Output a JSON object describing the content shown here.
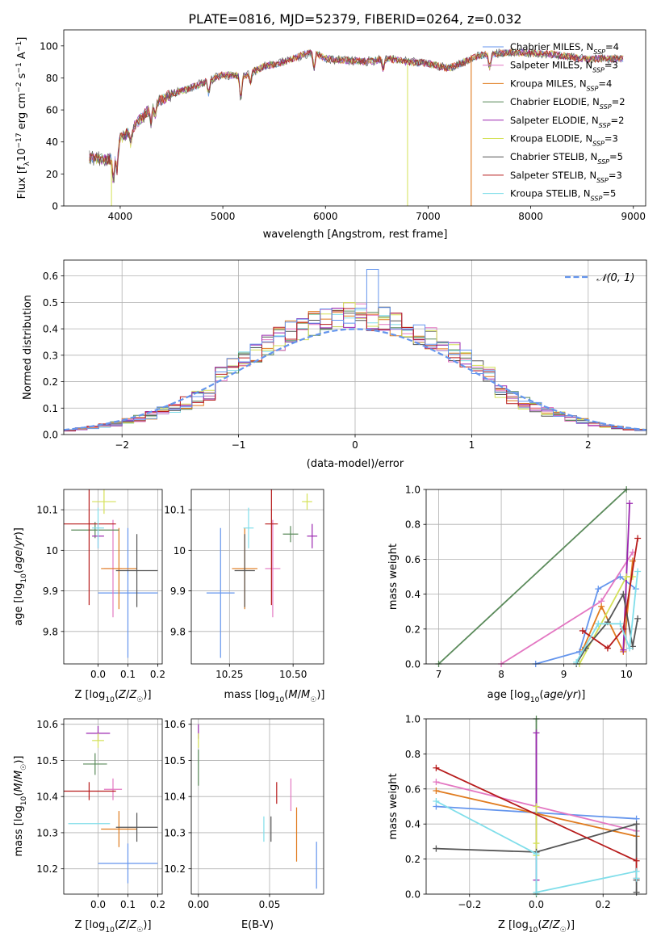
{
  "colors": [
    "#6495ed",
    "#e377c2",
    "#e07b1e",
    "#5a8a5a",
    "#9b27b0",
    "#d4e157",
    "#555555",
    "#b71c1c",
    "#80deea"
  ],
  "chart_data": [
    {
      "id": "spectrum",
      "type": "line",
      "title": "PLATE=0816, MJD=52379, FIBERID=0264, z=0.032",
      "xlabel": "wavelength [Angstrom, rest frame]",
      "ylabel": "Flux [fλ10⁻¹⁷ erg cm⁻² s⁻¹ A⁻¹]",
      "xlim": [
        3450,
        9120
      ],
      "ylim": [
        0,
        110
      ],
      "xticks": [
        4000,
        5000,
        6000,
        7000,
        8000,
        9000
      ],
      "yticks": [
        0,
        20,
        40,
        60,
        80,
        100
      ],
      "x_range": [
        3700,
        8900
      ],
      "continuum": [
        [
          3700,
          30
        ],
        [
          3900,
          29
        ],
        [
          4000,
          42
        ],
        [
          4100,
          47
        ],
        [
          4300,
          62
        ],
        [
          4500,
          70
        ],
        [
          4700,
          74
        ],
        [
          4850,
          78
        ],
        [
          5000,
          82
        ],
        [
          5200,
          81
        ],
        [
          5400,
          87
        ],
        [
          5600,
          90
        ],
        [
          5800,
          95
        ],
        [
          5900,
          96
        ],
        [
          6000,
          92
        ],
        [
          6200,
          91
        ],
        [
          6400,
          90
        ],
        [
          6600,
          92
        ],
        [
          6800,
          90
        ],
        [
          7000,
          89
        ],
        [
          7200,
          86
        ],
        [
          7500,
          94
        ],
        [
          7800,
          96
        ],
        [
          8200,
          95
        ],
        [
          8500,
          92
        ],
        [
          8900,
          92
        ]
      ],
      "legend_loc": "upper right",
      "series": [
        {
          "name": "Chabrier MILES, N_SSP=4"
        },
        {
          "name": "Salpeter MILES, N_SSP=3"
        },
        {
          "name": "Kroupa MILES, N_SSP=4"
        },
        {
          "name": "Chabrier ELODIE, N_SSP=2"
        },
        {
          "name": "Salpeter ELODIE, N_SSP=2"
        },
        {
          "name": "Kroupa ELODIE, N_SSP=3"
        },
        {
          "name": "Chabrier STELIB, N_SSP=5"
        },
        {
          "name": "Salpeter STELIB, N_SSP=3"
        },
        {
          "name": "Kroupa STELIB, N_SSP=5"
        }
      ]
    },
    {
      "id": "residuals",
      "type": "histogram",
      "xlabel": "(data-model)/error",
      "ylabel": "Normed distribution",
      "xlim": [
        -2.5,
        2.5
      ],
      "ylim": [
        0,
        0.66
      ],
      "xticks": [
        -2,
        -1,
        0,
        1,
        2
      ],
      "yticks": [
        0.0,
        0.1,
        0.2,
        0.3,
        0.4,
        0.5,
        0.6
      ],
      "bin_width": 0.1,
      "bin_start": -2.5,
      "reference_label": "𝒩(0, 1)",
      "reference_color": "#6495ed",
      "legend_loc": "upper right",
      "grid": true
    },
    {
      "id": "age_vs_Z",
      "type": "errorbar",
      "xlabel": "Z [log10(Z/Z☉)]",
      "ylabel": "age  [log10(age/yr)]",
      "xlim": [
        -0.115,
        0.215
      ],
      "ylim": [
        9.72,
        10.15
      ],
      "xticks": [
        0.0,
        0.1,
        0.2
      ],
      "xticklabels": [
        "0.0",
        "0.1",
        "0.2"
      ],
      "yticks": [
        9.8,
        9.9,
        10.0,
        10.1
      ],
      "points": [
        {
          "x": 0.1,
          "xerr": 0.1,
          "y": 9.895,
          "yerr": 0.16,
          "c": 0
        },
        {
          "x": 0.05,
          "xerr": 0.03,
          "y": 9.955,
          "yerr": 0.12,
          "c": 1
        },
        {
          "x": 0.07,
          "xerr": 0.06,
          "y": 9.955,
          "yerr": 0.1,
          "c": 2
        },
        {
          "x": -0.01,
          "xerr": 0.08,
          "y": 10.05,
          "yerr": 0.02,
          "c": 3
        },
        {
          "x": 0.0,
          "xerr": 0.02,
          "y": 10.035,
          "yerr": 0.03,
          "c": 4
        },
        {
          "x": 0.02,
          "xerr": 0.04,
          "y": 10.12,
          "yerr": 0.03,
          "c": 5
        },
        {
          "x": 0.13,
          "xerr": 0.07,
          "y": 9.95,
          "yerr": 0.09,
          "c": 6
        },
        {
          "x": -0.03,
          "xerr": 0.09,
          "y": 10.065,
          "yerr": 0.2,
          "c": 7
        },
        {
          "x": 0.0,
          "xerr": 0.02,
          "y": 10.055,
          "yerr": 0.05,
          "c": 8
        }
      ]
    },
    {
      "id": "age_vs_mass",
      "type": "errorbar",
      "xlabel": "mass [log10(M/M☉)]",
      "ylabel": "",
      "xlim": [
        10.1,
        10.62
      ],
      "ylim": [
        9.72,
        10.15
      ],
      "xticks": [
        10.25,
        10.5
      ],
      "xticklabels": [
        "10.25",
        "10.50"
      ],
      "yticks": [
        9.8,
        9.9,
        10.0,
        10.1
      ],
      "points": [
        {
          "x": 10.215,
          "xerr": 0.055,
          "y": 9.895,
          "yerr": 0.16,
          "c": 0
        },
        {
          "x": 10.42,
          "xerr": 0.03,
          "y": 9.955,
          "yerr": 0.12,
          "c": 1
        },
        {
          "x": 10.31,
          "xerr": 0.05,
          "y": 9.955,
          "yerr": 0.1,
          "c": 2
        },
        {
          "x": 10.49,
          "xerr": 0.03,
          "y": 10.04,
          "yerr": 0.02,
          "c": 3
        },
        {
          "x": 10.575,
          "xerr": 0.02,
          "y": 10.035,
          "yerr": 0.03,
          "c": 4
        },
        {
          "x": 10.555,
          "xerr": 0.02,
          "y": 10.12,
          "yerr": 0.02,
          "c": 5
        },
        {
          "x": 10.31,
          "xerr": 0.04,
          "y": 9.95,
          "yerr": 0.09,
          "c": 6
        },
        {
          "x": 10.415,
          "xerr": 0.025,
          "y": 10.065,
          "yerr": 0.2,
          "c": 7
        },
        {
          "x": 10.325,
          "xerr": 0.02,
          "y": 10.055,
          "yerr": 0.05,
          "c": 8
        }
      ]
    },
    {
      "id": "weight_vs_age",
      "type": "line",
      "xlabel": "age  [log10(age/yr)]",
      "ylabel": "mass weight",
      "xlim": [
        6.8,
        10.32
      ],
      "ylim": [
        0,
        1.0
      ],
      "xticks": [
        7,
        8,
        9,
        10
      ],
      "yticks": [
        0.0,
        0.2,
        0.4,
        0.6,
        0.8,
        1.0
      ],
      "yticklabels": [
        "0.0",
        "0.2",
        "0.4",
        "0.6",
        "0.8",
        "1.0"
      ],
      "series": [
        {
          "c": 0,
          "x": [
            8.55,
            9.25,
            9.55,
            9.9,
            10.15
          ],
          "y": [
            0.0,
            0.07,
            0.43,
            0.5,
            0.43
          ]
        },
        {
          "c": 1,
          "x": [
            8.0,
            9.6,
            10.1
          ],
          "y": [
            0.0,
            0.36,
            0.64
          ]
        },
        {
          "c": 2,
          "x": [
            9.3,
            9.6,
            9.95,
            10.1
          ],
          "y": [
            0.08,
            0.33,
            0.07,
            0.59
          ]
        },
        {
          "c": 3,
          "x": [
            7.0,
            10.0
          ],
          "y": [
            0.0,
            1.0
          ]
        },
        {
          "c": 4,
          "x": [
            9.95,
            10.05
          ],
          "y": [
            0.08,
            0.92
          ]
        },
        {
          "c": 5,
          "x": [
            9.25,
            10.0,
            10.1
          ],
          "y": [
            0.0,
            0.5,
            0.5
          ]
        },
        {
          "c": 6,
          "x": [
            9.2,
            9.35,
            9.7,
            9.95,
            10.1,
            10.18
          ],
          "y": [
            0.0,
            0.09,
            0.24,
            0.4,
            0.1,
            0.26
          ]
        },
        {
          "c": 7,
          "x": [
            9.3,
            9.7,
            9.95,
            10.18
          ],
          "y": [
            0.19,
            0.09,
            0.2,
            0.72
          ]
        },
        {
          "c": 8,
          "x": [
            9.2,
            9.55,
            9.9,
            10.05,
            10.18
          ],
          "y": [
            0.01,
            0.23,
            0.23,
            0.09,
            0.53
          ]
        }
      ]
    },
    {
      "id": "mass_vs_Z",
      "type": "errorbar",
      "xlabel": "Z [log10(Z/Z☉)]",
      "ylabel": "mass [log10(M/M☉)]",
      "xlim": [
        -0.115,
        0.215
      ],
      "ylim": [
        10.13,
        10.615
      ],
      "xticks": [
        0.0,
        0.1,
        0.2
      ],
      "xticklabels": [
        "0.0",
        "0.1",
        "0.2"
      ],
      "yticks": [
        10.2,
        10.3,
        10.4,
        10.5,
        10.6
      ],
      "points": [
        {
          "x": 0.1,
          "xerr": 0.1,
          "y": 10.215,
          "yerr": 0.055,
          "c": 0
        },
        {
          "x": 0.05,
          "xerr": 0.03,
          "y": 10.42,
          "yerr": 0.03,
          "c": 1
        },
        {
          "x": 0.07,
          "xerr": 0.06,
          "y": 10.31,
          "yerr": 0.05,
          "c": 2
        },
        {
          "x": -0.01,
          "xerr": 0.04,
          "y": 10.49,
          "yerr": 0.03,
          "c": 3
        },
        {
          "x": 0.0,
          "xerr": 0.04,
          "y": 10.575,
          "yerr": 0.02,
          "c": 4
        },
        {
          "x": 0.0,
          "xerr": 0.02,
          "y": 10.555,
          "yerr": 0.02,
          "c": 5
        },
        {
          "x": 0.13,
          "xerr": 0.07,
          "y": 10.315,
          "yerr": 0.04,
          "c": 6
        },
        {
          "x": -0.03,
          "xerr": 0.09,
          "y": 10.415,
          "yerr": 0.025,
          "c": 7
        },
        {
          "x": -0.03,
          "xerr": 0.07,
          "y": 10.325,
          "yerr": 0.0,
          "c": 8
        }
      ]
    },
    {
      "id": "mass_vs_ebv",
      "type": "errorbar",
      "xlabel": "E(B-V)",
      "ylabel": "",
      "xlim": [
        -0.005,
        0.088
      ],
      "ylim": [
        10.13,
        10.615
      ],
      "xticks": [
        0.0,
        0.05
      ],
      "xticklabels": [
        "0.00",
        "0.05"
      ],
      "yticks": [
        10.2,
        10.3,
        10.4,
        10.5,
        10.6
      ],
      "points": [
        {
          "x": 0.083,
          "xerr": 0.0,
          "y": 10.21,
          "yerr": 0.065,
          "c": 0
        },
        {
          "x": 0.065,
          "xerr": 0.0,
          "y": 10.405,
          "yerr": 0.045,
          "c": 1
        },
        {
          "x": 0.069,
          "xerr": 0.0,
          "y": 10.295,
          "yerr": 0.075,
          "c": 2
        },
        {
          "x": 0.0,
          "xerr": 0.0,
          "y": 10.48,
          "yerr": 0.05,
          "c": 3
        },
        {
          "x": 0.0,
          "xerr": 0.0,
          "y": 10.58,
          "yerr": 0.02,
          "c": 4
        },
        {
          "x": 0.0,
          "xerr": 0.0,
          "y": 10.555,
          "yerr": 0.02,
          "c": 5
        },
        {
          "x": 0.051,
          "xerr": 0.0,
          "y": 10.31,
          "yerr": 0.035,
          "c": 6
        },
        {
          "x": 0.055,
          "xerr": 0.0,
          "y": 10.41,
          "yerr": 0.03,
          "c": 7
        },
        {
          "x": 0.046,
          "xerr": 0.0,
          "y": 10.31,
          "yerr": 0.035,
          "c": 8
        }
      ]
    },
    {
      "id": "weight_vs_Z",
      "type": "line",
      "xlabel": "Z [log10(Z/Z☉)]",
      "ylabel": "mass weight",
      "xlim": [
        -0.33,
        0.33
      ],
      "ylim": [
        0,
        1.0
      ],
      "xticks": [
        -0.2,
        0.0,
        0.2
      ],
      "xticklabels": [
        "−0.2",
        "0.0",
        "0.2"
      ],
      "yticks": [
        0.0,
        0.2,
        0.4,
        0.6,
        0.8,
        1.0
      ],
      "yticklabels": [
        "0.0",
        "0.2",
        "0.4",
        "0.6",
        "0.8",
        "1.0"
      ],
      "series": [
        {
          "c": 0,
          "x": [
            -0.3,
            0.3
          ],
          "y": [
            0.5,
            0.43
          ]
        },
        {
          "c": 1,
          "x": [
            -0.3,
            0.3
          ],
          "y": [
            0.64,
            0.36
          ]
        },
        {
          "c": 2,
          "x": [
            -0.3,
            0.0,
            0.3
          ],
          "y": [
            0.59,
            0.46,
            0.33
          ]
        },
        {
          "c": 3,
          "x": [
            0.0,
            0.0
          ],
          "y": [
            0.0,
            1.0
          ]
        },
        {
          "c": 4,
          "x": [
            0.0,
            0.0
          ],
          "y": [
            0.08,
            0.92
          ]
        },
        {
          "c": 5,
          "x": [
            0.0,
            0.0,
            0.0
          ],
          "y": [
            0.5,
            0.29,
            0.22
          ]
        },
        {
          "c": 6,
          "x": [
            -0.3,
            0.0,
            0.3,
            0.3,
            0.3
          ],
          "y": [
            0.26,
            0.24,
            0.4,
            0.08,
            0.01
          ]
        },
        {
          "c": 7,
          "x": [
            -0.3,
            0.3,
            0.3
          ],
          "y": [
            0.72,
            0.19,
            0.09
          ]
        },
        {
          "c": 8,
          "x": [
            -0.3,
            0.0,
            0.0,
            0.3,
            0.3
          ],
          "y": [
            0.53,
            0.23,
            0.01,
            0.13,
            0.09
          ]
        }
      ]
    }
  ]
}
